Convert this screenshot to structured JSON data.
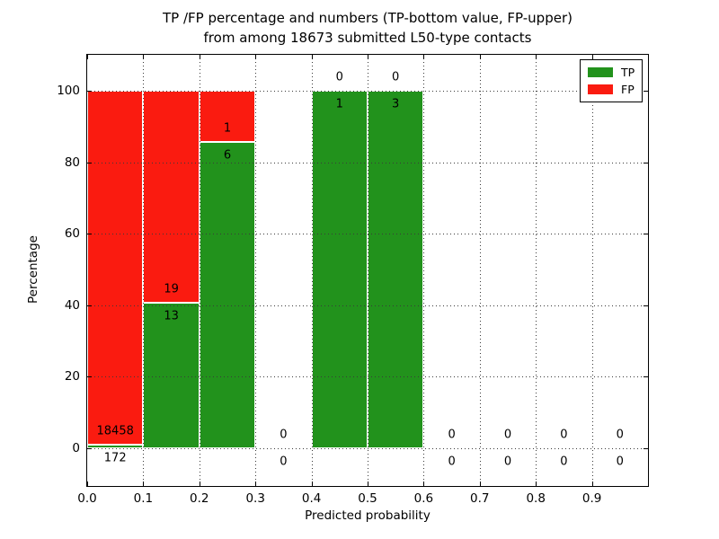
{
  "figure": {
    "title_line1": "TP /FP percentage and numbers (TP-bottom value, FP-upper)",
    "title_line2": "from among 18673 submitted L50-type contacts",
    "xlabel": "Predicted probability",
    "ylabel": "Percentage"
  },
  "legend": {
    "items": [
      {
        "label": "TP",
        "color": "#22921c"
      },
      {
        "label": "FP",
        "color": "#fa1b10"
      }
    ]
  },
  "chart_data": {
    "type": "bar",
    "stacked": true,
    "title": "TP /FP percentage and numbers (TP-bottom value, FP-upper) from among 18673 submitted L50-type contacts",
    "xlabel": "Predicted probability",
    "ylabel": "Percentage",
    "total_contacts": 18673,
    "bin_width": 0.1,
    "bin_starts": [
      0.0,
      0.1,
      0.2,
      0.3,
      0.4,
      0.5,
      0.6,
      0.7,
      0.8,
      0.9
    ],
    "series": [
      {
        "name": "TP",
        "color": "#22921c",
        "counts": [
          172,
          13,
          6,
          0,
          1,
          3,
          0,
          0,
          0,
          0
        ],
        "percentages": [
          0.92,
          40.63,
          85.71,
          0,
          100,
          100,
          0,
          0,
          0,
          0
        ],
        "label_position": "bottom"
      },
      {
        "name": "FP",
        "color": "#fa1b10",
        "counts": [
          18458,
          19,
          1,
          0,
          0,
          0,
          0,
          0,
          0,
          0
        ],
        "percentages": [
          99.08,
          59.37,
          14.29,
          0,
          0,
          0,
          0,
          0,
          0,
          0
        ],
        "label_position": "upper"
      }
    ],
    "xlim": [
      0,
      1.0
    ],
    "ylim": [
      -10.55,
      110.05
    ],
    "xticks": [
      0,
      0.1,
      0.2,
      0.3,
      0.4,
      0.5,
      0.6,
      0.7,
      0.8,
      0.9
    ],
    "xtick_labels": [
      "0.0",
      "0.1",
      "0.2",
      "0.3",
      "0.4",
      "0.5",
      "0.6",
      "0.7",
      "0.8",
      "0.9"
    ],
    "yticks": [
      0,
      20,
      40,
      60,
      80,
      100
    ],
    "ytick_labels": [
      "0",
      "20",
      "40",
      "60",
      "80",
      "100"
    ],
    "grid": true,
    "grid_style": "dotted",
    "legend_loc": "upper right",
    "bar_edge_color": "#ffffff",
    "label_offset_units": 3.8
  }
}
